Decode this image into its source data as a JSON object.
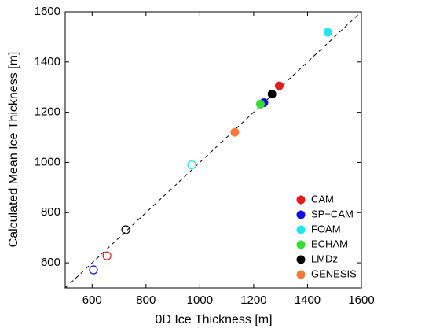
{
  "chart_data": {
    "type": "scatter",
    "xlabel": "0D Ice Thickness [m]",
    "ylabel": "Calculated Mean Ice Thickness [m]",
    "xlim": [
      500,
      1600
    ],
    "ylim": [
      500,
      1600
    ],
    "xticks": [
      600,
      800,
      1000,
      1200,
      1400,
      1600
    ],
    "yticks": [
      600,
      800,
      1000,
      1200,
      1400,
      1600
    ],
    "legend": "lower right",
    "series": [
      {
        "name": "CAM",
        "color": "#e41a1c",
        "x": [
          1295,
          655
        ],
        "values": [
          1305,
          628
        ],
        "marker_fill": [
          "filled",
          "open"
        ]
      },
      {
        "name": "SP−CAM",
        "color": "#1010e0",
        "x": [
          1238,
          605
        ],
        "values": [
          1238,
          572
        ],
        "marker_fill": [
          "filled",
          "open"
        ]
      },
      {
        "name": "FOAM",
        "color": "#22e5f0",
        "x": [
          1475,
          970
        ],
        "values": [
          1518,
          990
        ],
        "marker_fill": [
          "filled",
          "open"
        ]
      },
      {
        "name": "ECHAM",
        "color": "#33dd33",
        "x": [
          1225
        ],
        "values": [
          1232
        ],
        "marker_fill": [
          "filled"
        ]
      },
      {
        "name": "LMDz",
        "color": "#000000",
        "x": [
          1268,
          725
        ],
        "values": [
          1272,
          732
        ],
        "marker_fill": [
          "filled",
          "open"
        ]
      },
      {
        "name": "GENESIS",
        "color": "#f47a3a",
        "x": [
          1130
        ],
        "values": [
          1120
        ],
        "marker_fill": [
          "filled"
        ]
      }
    ]
  }
}
